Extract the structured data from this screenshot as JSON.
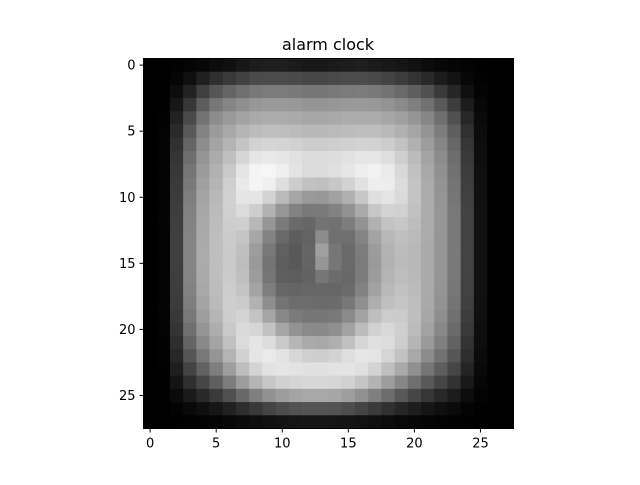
{
  "chart_data": {
    "type": "heatmap",
    "title": "alarm clock",
    "xlabel": "",
    "ylabel": "",
    "colormap": "gray",
    "grid": false,
    "x_range": [
      -0.5,
      27.5
    ],
    "y_range": [
      -0.5,
      27.5
    ],
    "y_inverted": true,
    "x_ticks": [
      0,
      5,
      10,
      15,
      20,
      25
    ],
    "y_ticks": [
      0,
      5,
      10,
      15,
      20,
      25
    ],
    "x_tick_labels": [
      "0",
      "5",
      "10",
      "15",
      "20",
      "25"
    ],
    "y_tick_labels": [
      "0",
      "5",
      "10",
      "15",
      "20",
      "25"
    ],
    "value_range": [
      0,
      255
    ],
    "approximate_pixel_intensities": [
      [
        0,
        0,
        2,
        5,
        7,
        12,
        16,
        23,
        29,
        31,
        30,
        27,
        24,
        24,
        27,
        29,
        31,
        27,
        24,
        21,
        17,
        12,
        8,
        5,
        3,
        1,
        0,
        0
      ],
      [
        0,
        0,
        5,
        15,
        32,
        47,
        57,
        65,
        74,
        76,
        76,
        74,
        71,
        71,
        74,
        76,
        76,
        73,
        67,
        60,
        51,
        41,
        28,
        18,
        7,
        2,
        0,
        0
      ],
      [
        0,
        0,
        13,
        34,
        64,
        86,
        101,
        111,
        120,
        123,
        123,
        121,
        118,
        118,
        121,
        123,
        124,
        121,
        115,
        106,
        94,
        80,
        58,
        38,
        16,
        4,
        0,
        0
      ],
      [
        0,
        1,
        23,
        55,
        93,
        119,
        133,
        143,
        151,
        154,
        154,
        152,
        149,
        149,
        151,
        153,
        154,
        152,
        147,
        139,
        127,
        113,
        89,
        60,
        28,
        7,
        0,
        0
      ],
      [
        0,
        2,
        34,
        74,
        115,
        141,
        154,
        163,
        170,
        172,
        172,
        170,
        167,
        167,
        169,
        172,
        172,
        171,
        166,
        160,
        149,
        134,
        111,
        80,
        39,
        10,
        0,
        0
      ],
      [
        0,
        3,
        42,
        89,
        131,
        155,
        168,
        180,
        188,
        191,
        190,
        187,
        184,
        184,
        186,
        188,
        190,
        189,
        185,
        177,
        165,
        148,
        125,
        94,
        48,
        12,
        0,
        0
      ],
      [
        0,
        3,
        49,
        101,
        141,
        164,
        180,
        197,
        210,
        213,
        212,
        209,
        205,
        205,
        207,
        209,
        211,
        210,
        205,
        194,
        177,
        157,
        134,
        103,
        54,
        13,
        0,
        0
      ],
      [
        0,
        3,
        53,
        110,
        149,
        171,
        191,
        214,
        230,
        233,
        230,
        225,
        219,
        219,
        222,
        226,
        230,
        230,
        223,
        207,
        187,
        164,
        140,
        109,
        58,
        14,
        0,
        0
      ],
      [
        0,
        3,
        56,
        117,
        155,
        177,
        201,
        228,
        244,
        246,
        239,
        228,
        220,
        219,
        224,
        230,
        238,
        242,
        235,
        216,
        193,
        168,
        144,
        113,
        61,
        15,
        0,
        0
      ],
      [
        0,
        3,
        58,
        122,
        160,
        181,
        207,
        233,
        244,
        240,
        222,
        205,
        194,
        192,
        199,
        210,
        225,
        238,
        237,
        220,
        196,
        171,
        147,
        116,
        63,
        16,
        0,
        0
      ],
      [
        0,
        3,
        60,
        126,
        164,
        185,
        209,
        229,
        229,
        211,
        186,
        166,
        154,
        152,
        161,
        176,
        199,
        223,
        228,
        218,
        196,
        172,
        149,
        118,
        65,
        16,
        0,
        0
      ],
      [
        0,
        3,
        61,
        129,
        167,
        187,
        208,
        219,
        206,
        178,
        150,
        130,
        121,
        122,
        130,
        146,
        170,
        199,
        211,
        209,
        193,
        172,
        150,
        120,
        66,
        17,
        0,
        0
      ],
      [
        0,
        3,
        62,
        131,
        169,
        189,
        205,
        207,
        184,
        150,
        122,
        106,
        102,
        115,
        113,
        125,
        147,
        177,
        195,
        199,
        189,
        171,
        150,
        121,
        67,
        17,
        0,
        0
      ],
      [
        0,
        3,
        63,
        132,
        170,
        190,
        203,
        197,
        167,
        131,
        105,
        94,
        99,
        140,
        112,
        111,
        132,
        163,
        184,
        191,
        186,
        171,
        150,
        121,
        67,
        17,
        0,
        0
      ],
      [
        0,
        3,
        63,
        133,
        171,
        191,
        202,
        191,
        157,
        120,
        96,
        89,
        101,
        160,
        118,
        106,
        125,
        156,
        179,
        188,
        184,
        170,
        150,
        121,
        68,
        17,
        0,
        0
      ],
      [
        0,
        3,
        63,
        133,
        171,
        191,
        202,
        189,
        153,
        115,
        93,
        89,
        100,
        150,
        118,
        105,
        123,
        154,
        178,
        187,
        184,
        170,
        150,
        121,
        68,
        17,
        0,
        0
      ],
      [
        0,
        3,
        62,
        132,
        170,
        190,
        203,
        191,
        156,
        117,
        95,
        93,
        98,
        118,
        108,
        104,
        124,
        156,
        180,
        189,
        185,
        170,
        149,
        120,
        67,
        17,
        0,
        0
      ],
      [
        0,
        3,
        61,
        130,
        168,
        189,
        205,
        196,
        164,
        126,
        103,
        101,
        102,
        103,
        102,
        107,
        130,
        162,
        185,
        193,
        187,
        170,
        148,
        119,
        66,
        17,
        0,
        0
      ],
      [
        0,
        3,
        59,
        126,
        164,
        186,
        206,
        203,
        178,
        142,
        116,
        109,
        108,
        107,
        108,
        120,
        143,
        174,
        192,
        197,
        189,
        169,
        146,
        116,
        64,
        16,
        0,
        0
      ],
      [
        0,
        3,
        56,
        120,
        158,
        181,
        205,
        212,
        196,
        165,
        136,
        123,
        118,
        118,
        121,
        138,
        163,
        190,
        204,
        203,
        190,
        167,
        142,
        112,
        61,
        15,
        0,
        0
      ],
      [
        0,
        3,
        52,
        111,
        149,
        174,
        201,
        218,
        215,
        194,
        166,
        147,
        138,
        137,
        143,
        162,
        188,
        209,
        216,
        207,
        188,
        162,
        136,
        106,
        57,
        14,
        0,
        0
      ],
      [
        0,
        2,
        46,
        100,
        137,
        164,
        193,
        219,
        229,
        221,
        201,
        182,
        170,
        168,
        175,
        192,
        213,
        224,
        221,
        205,
        181,
        154,
        127,
        98,
        51,
        13,
        0,
        0
      ],
      [
        0,
        2,
        39,
        85,
        120,
        149,
        180,
        209,
        229,
        234,
        227,
        215,
        207,
        206,
        211,
        222,
        230,
        228,
        213,
        194,
        168,
        140,
        114,
        86,
        45,
        11,
        0,
        0
      ],
      [
        0,
        1,
        30,
        67,
        97,
        126,
        158,
        189,
        212,
        226,
        229,
        227,
        225,
        225,
        227,
        228,
        224,
        211,
        191,
        169,
        144,
        118,
        94,
        70,
        36,
        9,
        0,
        0
      ],
      [
        0,
        1,
        20,
        47,
        70,
        95,
        125,
        156,
        181,
        199,
        209,
        213,
        215,
        215,
        214,
        209,
        197,
        179,
        157,
        134,
        111,
        89,
        69,
        50,
        25,
        6,
        0,
        0
      ],
      [
        0,
        0,
        10,
        26,
        41,
        58,
        80,
        104,
        127,
        145,
        157,
        164,
        168,
        168,
        166,
        158,
        145,
        127,
        108,
        88,
        70,
        54,
        40,
        28,
        13,
        3,
        0,
        0
      ],
      [
        0,
        0,
        3,
        9,
        15,
        22,
        32,
        45,
        57,
        68,
        76,
        81,
        84,
        84,
        82,
        77,
        68,
        58,
        48,
        38,
        29,
        21,
        15,
        10,
        4,
        1,
        0,
        0
      ],
      [
        0,
        0,
        0,
        2,
        3,
        5,
        8,
        11,
        14,
        17,
        19,
        21,
        22,
        22,
        21,
        20,
        18,
        15,
        12,
        9,
        7,
        5,
        3,
        2,
        1,
        0,
        0,
        0
      ]
    ]
  }
}
